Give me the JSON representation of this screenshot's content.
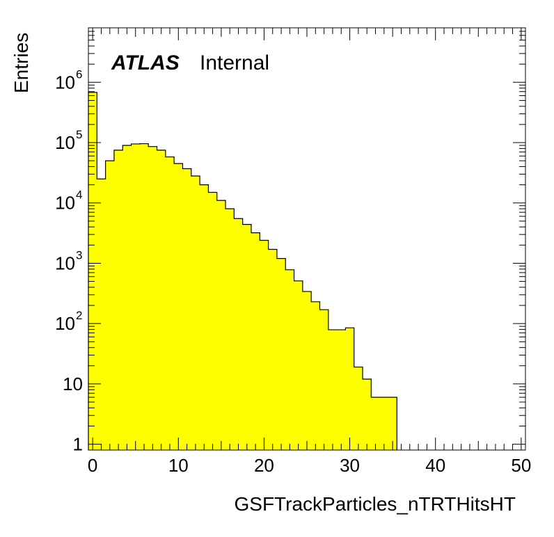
{
  "chart_data": {
    "type": "bar",
    "ylabel": "Entries",
    "xlabel": "GSFTrackParticles_nTRTHitsHT",
    "experiment_label": "ATLAS",
    "status_label": "Internal",
    "log_y": true,
    "xlim": [
      -0.5,
      50.5
    ],
    "ylim": [
      0.8,
      8000000
    ],
    "x_ticks": [
      0,
      10,
      20,
      30,
      40,
      50
    ],
    "x_tick_labels": [
      "0",
      "10",
      "20",
      "30",
      "40",
      "50"
    ],
    "y_ticks": [
      1,
      10,
      100,
      1000,
      10000,
      100000,
      1000000
    ],
    "y_tick_labels": [
      {
        "base": "1",
        "exp": ""
      },
      {
        "base": "10",
        "exp": ""
      },
      {
        "base": "10",
        "exp": "2"
      },
      {
        "base": "10",
        "exp": "3"
      },
      {
        "base": "10",
        "exp": "4"
      },
      {
        "base": "10",
        "exp": "5"
      },
      {
        "base": "10",
        "exp": "6"
      }
    ],
    "bin_edges_start": -0.5,
    "bin_width": 1,
    "values": [
      680000,
      25000,
      50000,
      75000,
      90000,
      95000,
      96000,
      86000,
      75000,
      58000,
      45000,
      37000,
      28000,
      20000,
      15000,
      11000,
      8000,
      5500,
      4400,
      3200,
      2400,
      1700,
      1200,
      780,
      510,
      340,
      230,
      170,
      79,
      79,
      85,
      19,
      12,
      6,
      6,
      6
    ]
  },
  "colors": {
    "fill": "#ffff00",
    "line": "#000000",
    "background": "#ffffff"
  }
}
